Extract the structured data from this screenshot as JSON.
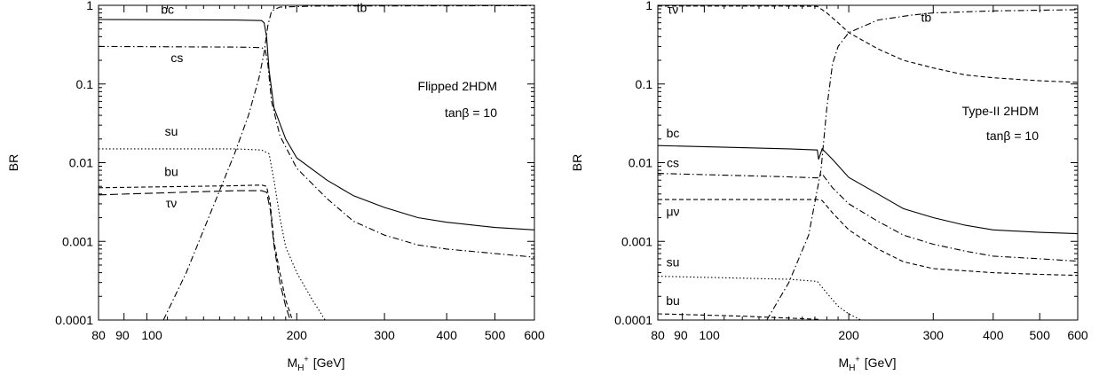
{
  "chart_data": [
    {
      "type": "line",
      "title": "",
      "annotation": "Flipped 2HDM",
      "annotation2": "tanβ = 10",
      "ylabel": "BR",
      "xlabel": "M",
      "xlabel_sub": "H",
      "xlabel_sup": "+",
      "xlabel_unit": "[GeV]",
      "xscale": "log",
      "yscale": "log",
      "xlim": [
        80,
        600
      ],
      "ylim": [
        0.0001,
        1
      ],
      "xticks": [
        80,
        90,
        100,
        200,
        300,
        400,
        500,
        600
      ],
      "xtick_labels": [
        "80",
        "90",
        "100",
        "200",
        "300",
        "400",
        "500",
        "600"
      ],
      "yticks": [
        0.0001,
        0.001,
        0.01,
        0.1,
        1
      ],
      "ytick_labels": [
        "0.0001",
        "0.001",
        "0.01",
        "0.1",
        "1"
      ],
      "series": [
        {
          "name": "bc",
          "dash": "solid",
          "label_at": [
            110,
            0.78
          ],
          "points": [
            [
              80,
              0.66
            ],
            [
              150,
              0.65
            ],
            [
              170,
              0.64
            ],
            [
              172,
              0.6
            ],
            [
              174,
              0.4
            ],
            [
              176,
              0.15
            ],
            [
              180,
              0.05
            ],
            [
              190,
              0.02
            ],
            [
              200,
              0.0115
            ],
            [
              230,
              0.006
            ],
            [
              260,
              0.0038
            ],
            [
              300,
              0.0027
            ],
            [
              350,
              0.002
            ],
            [
              400,
              0.00175
            ],
            [
              500,
              0.0015
            ],
            [
              600,
              0.0014
            ]
          ]
        },
        {
          "name": "cs",
          "dash": "dashdot",
          "label_at": [
            115,
            0.19
          ],
          "points": [
            [
              80,
              0.3
            ],
            [
              150,
              0.295
            ],
            [
              170,
              0.29
            ],
            [
              173,
              0.27
            ],
            [
              175,
              0.18
            ],
            [
              178,
              0.06
            ],
            [
              185,
              0.022
            ],
            [
              200,
              0.0085
            ],
            [
              230,
              0.0035
            ],
            [
              260,
              0.0018
            ],
            [
              300,
              0.0012
            ],
            [
              350,
              0.0009
            ],
            [
              400,
              0.0008
            ],
            [
              500,
              0.0007
            ],
            [
              600,
              0.00063
            ]
          ]
        },
        {
          "name": "su",
          "dash": "dotted",
          "label_at": [
            112,
            0.022
          ],
          "points": [
            [
              80,
              0.015
            ],
            [
              150,
              0.015
            ],
            [
              170,
              0.0145
            ],
            [
              176,
              0.013
            ],
            [
              180,
              0.006
            ],
            [
              185,
              0.002
            ],
            [
              190,
              0.00085
            ],
            [
              200,
              0.0004
            ],
            [
              215,
              0.00018
            ],
            [
              228,
              0.0001
            ]
          ]
        },
        {
          "name": "bu",
          "dash": "dashed",
          "label_at": [
            112,
            0.0068
          ],
          "points": [
            [
              80,
              0.0048
            ],
            [
              150,
              0.0051
            ],
            [
              170,
              0.0052
            ],
            [
              174,
              0.005
            ],
            [
              177,
              0.003
            ],
            [
              180,
              0.001
            ],
            [
              185,
              0.0004
            ],
            [
              190,
              0.00018
            ],
            [
              196,
              0.0001
            ]
          ]
        },
        {
          "name": "τν",
          "dash": "longdash",
          "label_at": [
            112,
            0.0027
          ],
          "points": [
            [
              80,
              0.0039
            ],
            [
              150,
              0.0044
            ],
            [
              170,
              0.0044
            ],
            [
              174,
              0.0042
            ],
            [
              177,
              0.0025
            ],
            [
              180,
              0.0009
            ],
            [
              185,
              0.0003
            ],
            [
              190,
              0.00015
            ],
            [
              194,
              0.0001
            ]
          ]
        },
        {
          "name": "tb",
          "dash": "dashdot",
          "label_at": [
            270,
            0.82
          ],
          "points": [
            [
              108,
              0.0001
            ],
            [
              120,
              0.0004
            ],
            [
              135,
              0.0025
            ],
            [
              150,
              0.013
            ],
            [
              160,
              0.04
            ],
            [
              168,
              0.12
            ],
            [
              172,
              0.25
            ],
            [
              175,
              0.55
            ],
            [
              178,
              0.85
            ],
            [
              185,
              0.95
            ],
            [
              220,
              0.98
            ],
            [
              600,
              0.99
            ]
          ]
        }
      ]
    },
    {
      "type": "line",
      "title": "",
      "annotation": "Type-II 2HDM",
      "annotation2": "tanβ = 10",
      "ylabel": "BR",
      "xlabel": "M",
      "xlabel_sub": "H",
      "xlabel_sup": "+",
      "xlabel_unit": "[GeV]",
      "xscale": "log",
      "yscale": "log",
      "xlim": [
        80,
        600
      ],
      "ylim": [
        0.0001,
        1
      ],
      "xticks": [
        80,
        90,
        100,
        200,
        300,
        400,
        500,
        600
      ],
      "xtick_labels": [
        "80",
        "90",
        "100",
        "200",
        "300",
        "400",
        "500",
        "600"
      ],
      "yticks": [
        0.0001,
        0.001,
        0.01,
        0.1,
        1
      ],
      "ytick_labels": [
        "0.0001",
        "0.001",
        "0.01",
        "0.1",
        "1"
      ],
      "series": [
        {
          "name": "τν",
          "dash": "dashed",
          "label_at": [
            86,
            0.78
          ],
          "points": [
            [
              80,
              0.98
            ],
            [
              150,
              0.98
            ],
            [
              172,
              0.97
            ],
            [
              180,
              0.8
            ],
            [
              190,
              0.6
            ],
            [
              200,
              0.45
            ],
            [
              230,
              0.28
            ],
            [
              260,
              0.2
            ],
            [
              300,
              0.16
            ],
            [
              350,
              0.13
            ],
            [
              400,
              0.12
            ],
            [
              500,
              0.11
            ],
            [
              600,
              0.105
            ]
          ]
        },
        {
          "name": "tb",
          "dash": "dashdot",
          "label_at": [
            290,
            0.62
          ],
          "points": [
            [
              135,
              0.0001
            ],
            [
              150,
              0.0003
            ],
            [
              165,
              0.0012
            ],
            [
              175,
              0.008
            ],
            [
              180,
              0.05
            ],
            [
              185,
              0.18
            ],
            [
              190,
              0.3
            ],
            [
              200,
              0.45
            ],
            [
              230,
              0.65
            ],
            [
              270,
              0.75
            ],
            [
              300,
              0.8
            ],
            [
              400,
              0.85
            ],
            [
              600,
              0.88
            ]
          ]
        },
        {
          "name": "bc",
          "dash": "solid",
          "label_at": [
            86,
            0.021
          ],
          "points": [
            [
              80,
              0.0165
            ],
            [
              120,
              0.0155
            ],
            [
              150,
              0.015
            ],
            [
              172,
              0.0145
            ],
            [
              173,
              0.011
            ],
            [
              176,
              0.015
            ],
            [
              185,
              0.011
            ],
            [
              200,
              0.0065
            ],
            [
              230,
              0.004
            ],
            [
              260,
              0.0026
            ],
            [
              300,
              0.002
            ],
            [
              350,
              0.0016
            ],
            [
              400,
              0.0014
            ],
            [
              500,
              0.0013
            ],
            [
              600,
              0.00125
            ]
          ]
        },
        {
          "name": "cs",
          "dash": "dashdot",
          "label_at": [
            86,
            0.0088
          ],
          "points": [
            [
              80,
              0.0073
            ],
            [
              150,
              0.0066
            ],
            [
              172,
              0.0064
            ],
            [
              176,
              0.0072
            ],
            [
              185,
              0.0048
            ],
            [
              200,
              0.003
            ],
            [
              230,
              0.0018
            ],
            [
              260,
              0.0012
            ],
            [
              300,
              0.00092
            ],
            [
              350,
              0.00075
            ],
            [
              400,
              0.00065
            ],
            [
              500,
              0.0006
            ],
            [
              600,
              0.00056
            ]
          ]
        },
        {
          "name": "μν",
          "dash": "dashed",
          "label_at": [
            86,
            0.0021
          ],
          "points": [
            [
              80,
              0.0034
            ],
            [
              150,
              0.0034
            ],
            [
              172,
              0.0034
            ],
            [
              176,
              0.0033
            ],
            [
              185,
              0.0023
            ],
            [
              200,
              0.0014
            ],
            [
              230,
              0.0008
            ],
            [
              260,
              0.00055
            ],
            [
              300,
              0.00045
            ],
            [
              400,
              0.0004
            ],
            [
              500,
              0.00038
            ],
            [
              600,
              0.00037
            ]
          ]
        },
        {
          "name": "su",
          "dash": "dotted",
          "label_at": [
            86,
            0.00048
          ],
          "points": [
            [
              80,
              0.00036
            ],
            [
              150,
              0.00033
            ],
            [
              172,
              0.00031
            ],
            [
              180,
              0.00022
            ],
            [
              190,
              0.00015
            ],
            [
              200,
              0.00012
            ],
            [
              212,
              0.0001
            ]
          ]
        },
        {
          "name": "bu",
          "dash": "dashed",
          "label_at": [
            86,
            0.000155
          ],
          "points": [
            [
              80,
              0.00012
            ],
            [
              120,
              0.000112
            ],
            [
              150,
              0.000106
            ],
            [
              172,
              0.000102
            ],
            [
              175,
              0.0001
            ]
          ]
        }
      ]
    }
  ]
}
